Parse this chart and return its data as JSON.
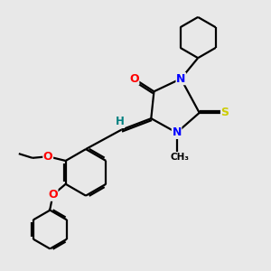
{
  "background_color": "#e8e8e8",
  "atom_colors": {
    "O": "#ff0000",
    "N": "#0000ff",
    "S": "#cccc00",
    "C": "#000000",
    "H": "#008080"
  },
  "bond_color": "#000000",
  "line_width": 1.6
}
